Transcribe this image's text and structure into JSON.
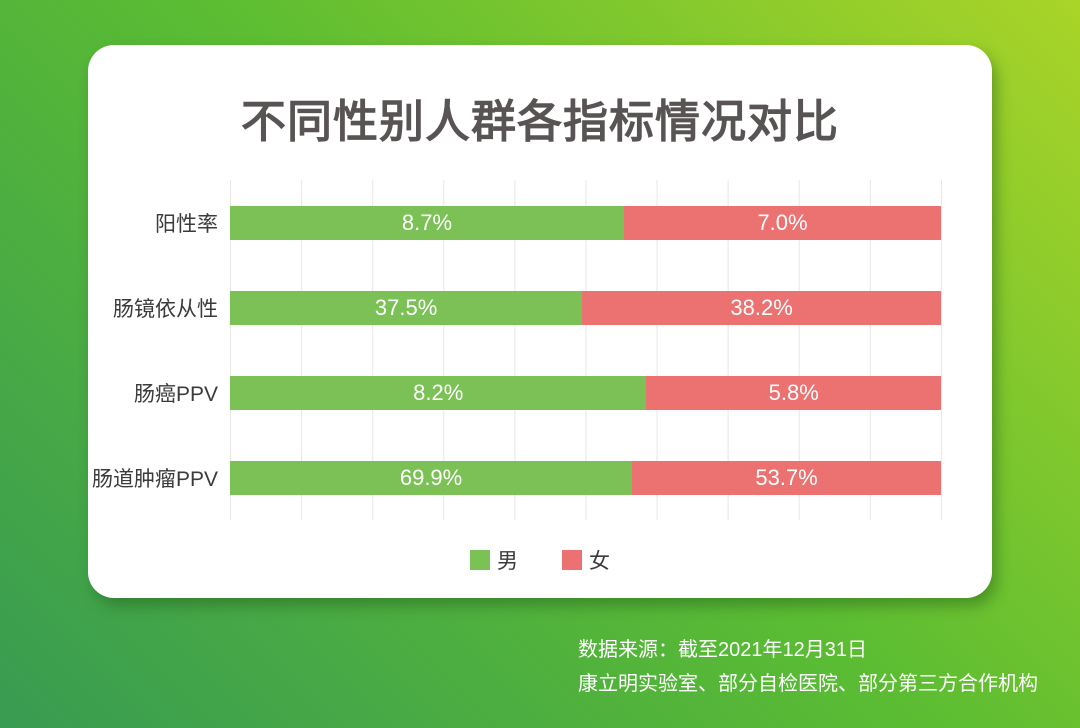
{
  "page": {
    "background_gradient": [
      "#aad428",
      "#5cbd32",
      "#389b52"
    ]
  },
  "card": {
    "title": "不同性别人群各指标情况对比",
    "title_color": "#595454"
  },
  "chart_data": {
    "type": "bar",
    "variant": "horizontal-100%-stacked",
    "title": "不同性别人群各指标情况对比",
    "categories": [
      "阳性率",
      "肠镜依从性",
      "肠癌PPV",
      "肠道肿瘤PPV"
    ],
    "series": [
      {
        "name": "男",
        "color": "#7bc156",
        "values": [
          8.7,
          37.5,
          8.2,
          69.9
        ]
      },
      {
        "name": "女",
        "color": "#ec7171",
        "values": [
          7.0,
          38.2,
          5.8,
          53.7
        ]
      }
    ],
    "value_labels": [
      [
        "8.7%",
        "7.0%"
      ],
      [
        "37.5%",
        "38.2%"
      ],
      [
        "8.2%",
        "5.8%"
      ],
      [
        "69.9%",
        "53.7%"
      ]
    ],
    "grid": true,
    "grid_divisions": 10,
    "legend_position": "bottom",
    "xlabel": "",
    "ylabel": ""
  },
  "legend": {
    "items": [
      {
        "label": "男",
        "color": "#7bc156"
      },
      {
        "label": "女",
        "color": "#ec7171"
      }
    ]
  },
  "footer": {
    "line1": "数据来源：截至2021年12月31日",
    "line2": "康立明实验室、部分自检医院、部分第三方合作机构"
  }
}
